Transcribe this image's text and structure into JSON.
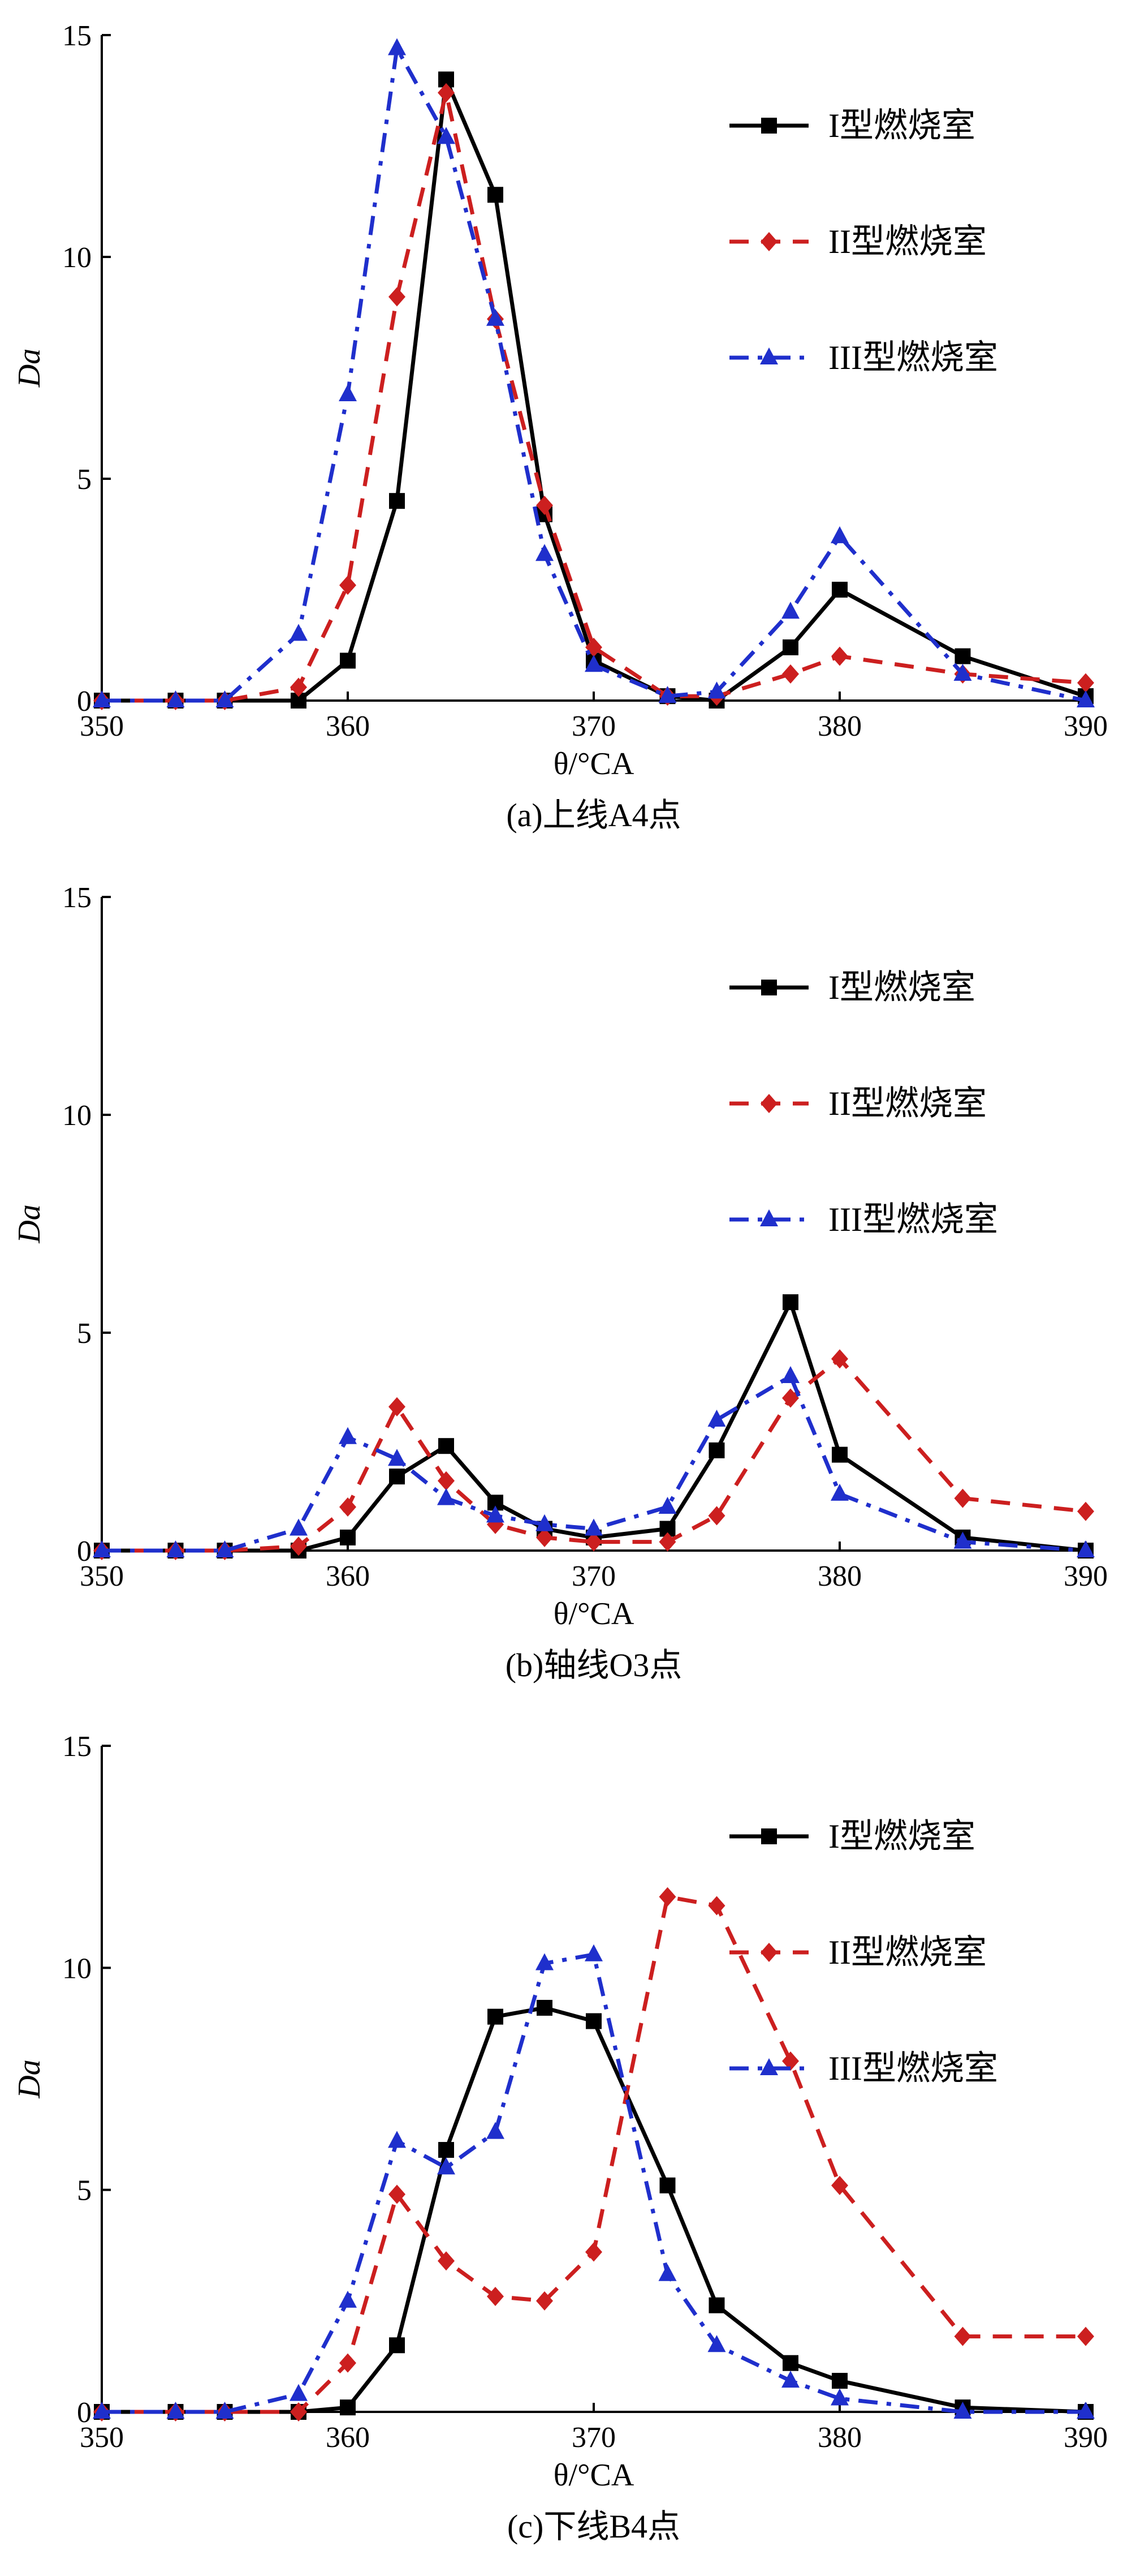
{
  "chart_data": [
    {
      "type": "line",
      "caption": "(a)上线A4点",
      "xlabel": "θ/°CA",
      "ylabel": "Da",
      "xlim": [
        350,
        390
      ],
      "ylim": [
        0,
        15
      ],
      "xticks": [
        350,
        360,
        370,
        380,
        390
      ],
      "yticks": [
        0,
        5,
        10,
        15
      ],
      "legend_position": "top-right",
      "series": [
        {
          "name": "I型燃烧室",
          "color": "#000000",
          "marker": "square",
          "dash": "solid",
          "x": [
            350,
            353,
            355,
            358,
            360,
            362,
            364,
            366,
            368,
            370,
            373,
            375,
            378,
            380,
            385,
            390
          ],
          "y": [
            0,
            0,
            0,
            0,
            0.9,
            4.5,
            14.0,
            11.4,
            4.2,
            0.9,
            0.1,
            0,
            1.2,
            2.5,
            1.0,
            0.1
          ]
        },
        {
          "name": "II型燃烧室",
          "color": "#cc1f1f",
          "marker": "diamond",
          "dash": "dashed",
          "x": [
            350,
            353,
            355,
            358,
            360,
            362,
            364,
            366,
            368,
            370,
            373,
            375,
            378,
            380,
            385,
            390
          ],
          "y": [
            0,
            0,
            0,
            0.3,
            2.6,
            9.1,
            13.7,
            8.6,
            4.4,
            1.2,
            0.1,
            0.1,
            0.6,
            1.0,
            0.6,
            0.4
          ]
        },
        {
          "name": "III型燃烧室",
          "color": "#1f2fcc",
          "marker": "triangle",
          "dash": "dashdot",
          "x": [
            350,
            353,
            355,
            358,
            360,
            362,
            364,
            366,
            368,
            370,
            373,
            375,
            378,
            380,
            385,
            390
          ],
          "y": [
            0,
            0,
            0,
            1.5,
            6.9,
            14.7,
            12.7,
            8.6,
            3.3,
            0.8,
            0.1,
            0.2,
            2.0,
            3.7,
            0.6,
            0
          ]
        }
      ]
    },
    {
      "type": "line",
      "caption": "(b)轴线O3点",
      "xlabel": "θ/°CA",
      "ylabel": "Da",
      "xlim": [
        350,
        390
      ],
      "ylim": [
        0,
        15
      ],
      "xticks": [
        350,
        360,
        370,
        380,
        390
      ],
      "yticks": [
        0,
        5,
        10,
        15
      ],
      "legend_position": "top-right",
      "series": [
        {
          "name": "I型燃烧室",
          "color": "#000000",
          "marker": "square",
          "dash": "solid",
          "x": [
            350,
            353,
            355,
            358,
            360,
            362,
            364,
            366,
            368,
            370,
            373,
            375,
            378,
            380,
            385,
            390
          ],
          "y": [
            0,
            0,
            0,
            0,
            0.3,
            1.7,
            2.4,
            1.1,
            0.5,
            0.3,
            0.5,
            2.3,
            5.7,
            2.2,
            0.3,
            0
          ]
        },
        {
          "name": "II型燃烧室",
          "color": "#cc1f1f",
          "marker": "diamond",
          "dash": "dashed",
          "x": [
            350,
            353,
            355,
            358,
            360,
            362,
            364,
            366,
            368,
            370,
            373,
            375,
            378,
            380,
            385,
            390
          ],
          "y": [
            0,
            0,
            0,
            0.1,
            1.0,
            3.3,
            1.6,
            0.6,
            0.3,
            0.2,
            0.2,
            0.8,
            3.5,
            4.4,
            1.2,
            0.9
          ]
        },
        {
          "name": "III型燃烧室",
          "color": "#1f2fcc",
          "marker": "triangle",
          "dash": "dashdot",
          "x": [
            350,
            353,
            355,
            358,
            360,
            362,
            364,
            366,
            368,
            370,
            373,
            375,
            378,
            380,
            385,
            390
          ],
          "y": [
            0,
            0,
            0,
            0.5,
            2.6,
            2.1,
            1.2,
            0.8,
            0.6,
            0.5,
            1.0,
            3.0,
            4.0,
            1.3,
            0.2,
            0
          ]
        }
      ]
    },
    {
      "type": "line",
      "caption": "(c)下线B4点",
      "xlabel": "θ/°CA",
      "ylabel": "Da",
      "xlim": [
        350,
        390
      ],
      "ylim": [
        0,
        15
      ],
      "xticks": [
        350,
        360,
        370,
        380,
        390
      ],
      "yticks": [
        0,
        5,
        10,
        15
      ],
      "legend_position": "top-right",
      "series": [
        {
          "name": "I型燃烧室",
          "color": "#000000",
          "marker": "square",
          "dash": "solid",
          "x": [
            350,
            353,
            355,
            358,
            360,
            362,
            364,
            366,
            368,
            370,
            373,
            375,
            378,
            380,
            385,
            390
          ],
          "y": [
            0,
            0,
            0,
            0,
            0.1,
            1.5,
            5.9,
            8.9,
            9.1,
            8.8,
            5.1,
            2.4,
            1.1,
            0.7,
            0.1,
            0
          ]
        },
        {
          "name": "II型燃烧室",
          "color": "#cc1f1f",
          "marker": "diamond",
          "dash": "dashed",
          "x": [
            350,
            353,
            355,
            358,
            360,
            362,
            364,
            366,
            368,
            370,
            373,
            375,
            378,
            380,
            385,
            390
          ],
          "y": [
            0,
            0,
            0,
            0,
            1.1,
            4.9,
            3.4,
            2.6,
            2.5,
            3.6,
            11.6,
            11.4,
            7.9,
            5.1,
            1.7,
            1.7
          ]
        },
        {
          "name": "III型燃烧室",
          "color": "#1f2fcc",
          "marker": "triangle",
          "dash": "dashdot",
          "x": [
            350,
            353,
            355,
            358,
            360,
            362,
            364,
            366,
            368,
            370,
            373,
            375,
            378,
            380,
            385,
            390
          ],
          "y": [
            0,
            0,
            0,
            0.4,
            2.5,
            6.1,
            5.5,
            6.3,
            10.1,
            10.3,
            3.1,
            1.5,
            0.7,
            0.3,
            0,
            0
          ]
        }
      ]
    }
  ]
}
